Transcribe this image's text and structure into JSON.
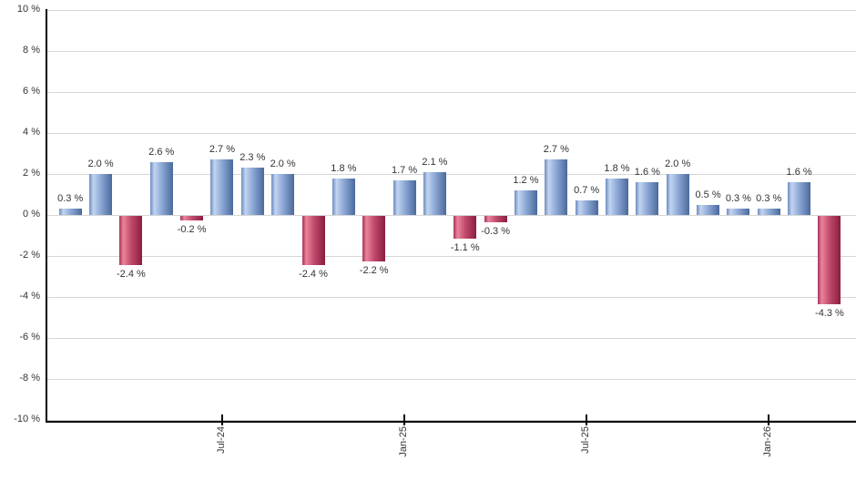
{
  "chart_data": {
    "type": "bar",
    "title": "",
    "xlabel": "",
    "ylabel": "",
    "unit": "%",
    "ylim": [
      -10,
      10
    ],
    "grid": true,
    "legend": null,
    "y_ticks": [
      {
        "value": 10,
        "label": "10 %"
      },
      {
        "value": 8,
        "label": "8 %"
      },
      {
        "value": 6,
        "label": "6 %"
      },
      {
        "value": 4,
        "label": "4 %"
      },
      {
        "value": 2,
        "label": "2 %"
      },
      {
        "value": 0,
        "label": "0 %"
      },
      {
        "value": -2,
        "label": "-2 %"
      },
      {
        "value": -4,
        "label": "-4 %"
      },
      {
        "value": -6,
        "label": "-6 %"
      },
      {
        "value": -8,
        "label": "-8 %"
      },
      {
        "value": -10,
        "label": "-10 %"
      }
    ],
    "x_ticks": [
      {
        "bar_index": 5,
        "label": "Jul-24"
      },
      {
        "bar_index": 11,
        "label": "Jan-25"
      },
      {
        "bar_index": 17,
        "label": "Jul-25"
      },
      {
        "bar_index": 23,
        "label": "Jan-26"
      }
    ],
    "bars": [
      {
        "value": 0.3,
        "label": "0.3 %"
      },
      {
        "value": 2.0,
        "label": "2.0 %"
      },
      {
        "value": -2.4,
        "label": "-2.4 %"
      },
      {
        "value": 2.6,
        "label": "2.6 %"
      },
      {
        "value": -0.2,
        "label": "-0.2 %"
      },
      {
        "value": 2.7,
        "label": "2.7 %"
      },
      {
        "value": 2.3,
        "label": "2.3 %"
      },
      {
        "value": 2.0,
        "label": "2.0 %"
      },
      {
        "value": -2.4,
        "label": "-2.4 %"
      },
      {
        "value": 1.8,
        "label": "1.8 %"
      },
      {
        "value": -2.2,
        "label": "-2.2 %"
      },
      {
        "value": 1.7,
        "label": "1.7 %"
      },
      {
        "value": 2.1,
        "label": "2.1 %"
      },
      {
        "value": -1.1,
        "label": "-1.1 %"
      },
      {
        "value": -0.3,
        "label": "-0.3 %"
      },
      {
        "value": 1.2,
        "label": "1.2 %"
      },
      {
        "value": 2.7,
        "label": "2.7 %"
      },
      {
        "value": 0.7,
        "label": "0.7 %"
      },
      {
        "value": 1.8,
        "label": "1.8 %"
      },
      {
        "value": 1.6,
        "label": "1.6 %"
      },
      {
        "value": 2.0,
        "label": "2.0 %"
      },
      {
        "value": 0.5,
        "label": "0.5 %"
      },
      {
        "value": 0.3,
        "label": "0.3 %"
      },
      {
        "value": 0.3,
        "label": "0.3 %"
      },
      {
        "value": 1.6,
        "label": "1.6 %"
      },
      {
        "value": -4.3,
        "label": "-4.3 %"
      }
    ],
    "colors": {
      "positive_edge": "#6d8cbf",
      "positive_light": "#c2d4f0",
      "positive_mid": "#8aa6d4",
      "positive_dark": "#4a699b",
      "negative_edge": "#a93458",
      "negative_light": "#ea849c",
      "negative_mid": "#c04a6c",
      "negative_dark": "#8a1e40",
      "gridline": "#d6d6d6",
      "axis": "#000000",
      "text": "#333333"
    }
  }
}
